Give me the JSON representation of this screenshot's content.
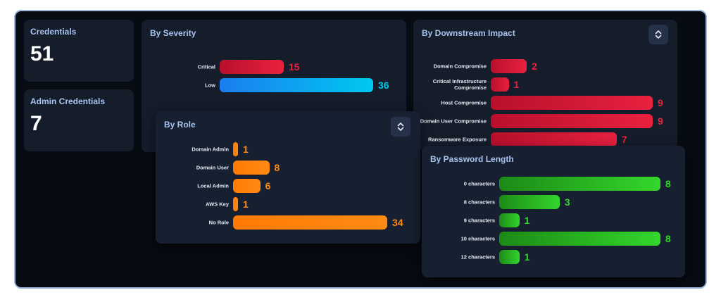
{
  "colors": {
    "red": "#e8213f",
    "blue": "#00c8f0",
    "orange": "#ff8a14",
    "green": "#34d62c"
  },
  "credentials": {
    "label": "Credentials",
    "value": "51"
  },
  "admin_credentials": {
    "label": "Admin Credentials",
    "value": "7"
  },
  "severity": {
    "title": "By Severity",
    "chart_data": {
      "type": "bar",
      "categories": [
        "Critical",
        "Low"
      ],
      "values": [
        15,
        36
      ],
      "value_labels": [
        "15",
        "36"
      ],
      "colors": [
        "red",
        "blue"
      ]
    }
  },
  "downstream": {
    "title": "By Downstream Impact",
    "sort_icon": "sort-icon",
    "chart_data": {
      "type": "bar",
      "categories": [
        "Domain Compromise",
        "Critical Infrastructure Compromise",
        "Host Compromise",
        "Domain User Compromise",
        "Ransomware Exposure"
      ],
      "values": [
        2,
        1,
        9,
        9,
        7
      ],
      "value_labels": [
        "2",
        "1",
        "9",
        "9",
        "7"
      ]
    }
  },
  "role": {
    "title": "By Role",
    "sort_icon": "sort-icon",
    "chart_data": {
      "type": "bar",
      "categories": [
        "Domain Admin",
        "Domain User",
        "Local Admin",
        "AWS Key",
        "No Role"
      ],
      "values": [
        1,
        8,
        6,
        1,
        34
      ],
      "value_labels": [
        "1",
        "8",
        "6",
        "1",
        "34"
      ]
    }
  },
  "password_length": {
    "title": "By Password Length",
    "chart_data": {
      "type": "bar",
      "categories": [
        "0 characters",
        "8 characters",
        "9 characters",
        "10 characters",
        "12 characters"
      ],
      "values": [
        8,
        3,
        1,
        8,
        1
      ],
      "value_labels": [
        "8",
        "3",
        "1",
        "8",
        "1"
      ]
    }
  }
}
